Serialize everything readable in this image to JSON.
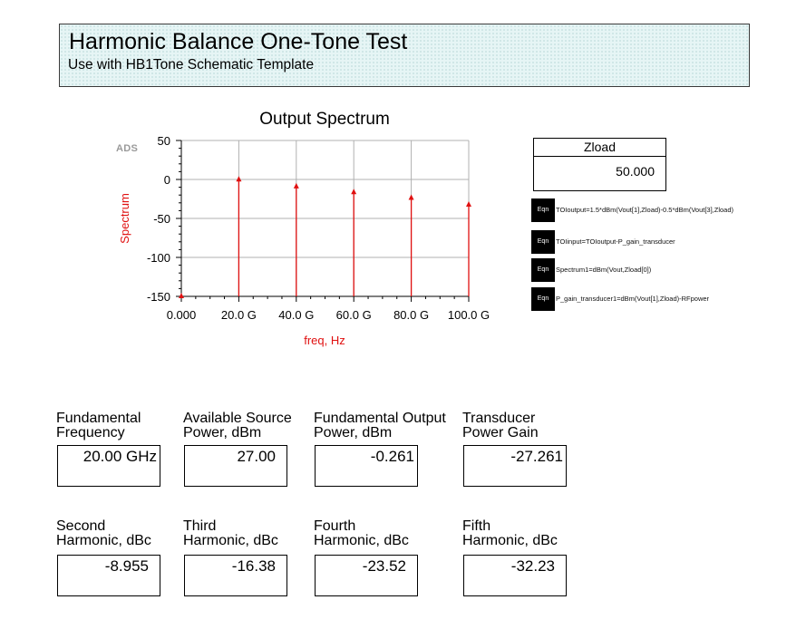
{
  "header": {
    "title": "Harmonic Balance One-Tone Test",
    "subtitle": "Use with HB1Tone Schematic Template"
  },
  "ads_tag": "ADS",
  "zload": {
    "label": "Zload",
    "value": "50.000"
  },
  "equations": [
    {
      "badge": "Eqn",
      "text": "TOIoutput=1.5*dBm(Vout[1],Zload)-0.5*dBm(Vout[3],Zload)"
    },
    {
      "badge": "Eqn",
      "text": "TOIinput=TOIoutput-P_gain_transducer"
    },
    {
      "badge": "Eqn",
      "text": "Spectrum1=dBm(Vout,Zload[0])"
    },
    {
      "badge": "Eqn",
      "text": "P_gain_transducer1=dBm(Vout[1],Zload)-RFpower"
    }
  ],
  "stats": [
    {
      "label1": "Fundamental",
      "label2": "Frequency",
      "value": "20.00 GHz"
    },
    {
      "label1": "Available Source",
      "label2": "Power, dBm",
      "value": "27.00"
    },
    {
      "label1": "Fundamental Output",
      "label2": "Power, dBm",
      "value": "-0.261"
    },
    {
      "label1": "Transducer",
      "label2": "Power Gain",
      "value": "-27.261"
    },
    {
      "label1": "Second",
      "label2": "Harmonic, dBc",
      "value": "-8.955"
    },
    {
      "label1": "Third",
      "label2": "Harmonic, dBc",
      "value": "-16.38"
    },
    {
      "label1": "Fourth",
      "label2": "Harmonic, dBc",
      "value": "-23.52"
    },
    {
      "label1": "Fifth",
      "label2": "Harmonic, dBc",
      "value": "-32.23"
    }
  ],
  "colors": {
    "trace": "#e01010",
    "axis_label": "#e01010",
    "grid": "#b0b0b0"
  },
  "chart_data": {
    "type": "bar",
    "title": "Output Spectrum",
    "xlabel": "freq, Hz",
    "ylabel": "Spectrum",
    "x": [
      0,
      20,
      40,
      60,
      80,
      100
    ],
    "x_units": "GHz",
    "values": [
      -150,
      -0.261,
      -9.2,
      -16.6,
      -23.8,
      -32.5
    ],
    "xlim": [
      0,
      100
    ],
    "ylim": [
      -150,
      50
    ],
    "xticks": [
      "0.000",
      "20.0 G",
      "40.0 G",
      "60.0 G",
      "80.0 G",
      "100.0 G"
    ],
    "yticks": [
      "50",
      "0",
      "-50",
      "-100",
      "-150"
    ],
    "ytick_values": [
      50,
      0,
      -50,
      -100,
      -150
    ],
    "grid": true
  }
}
